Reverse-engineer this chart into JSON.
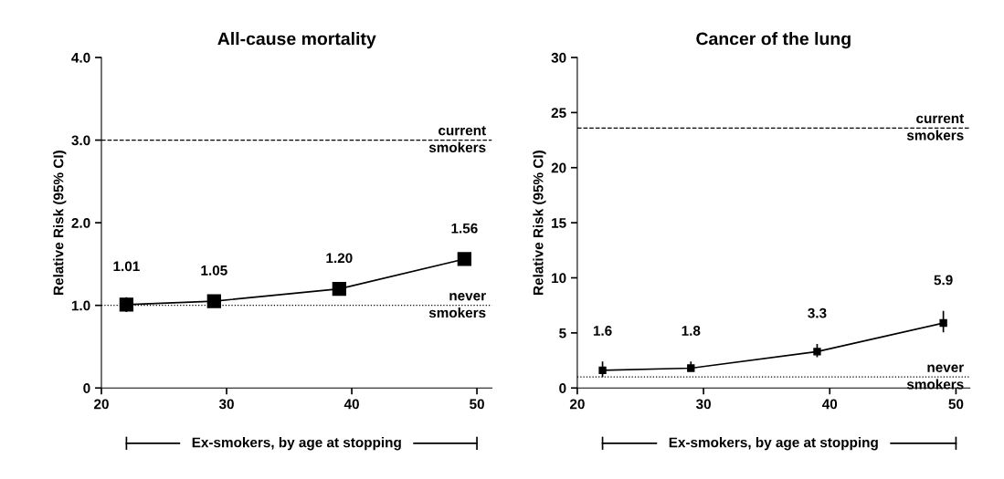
{
  "chart_data": [
    {
      "type": "line",
      "title": "All-cause mortality",
      "ylabel": "Relative Risk (95% CI)",
      "xlabel": "Ex-smokers, by age at stopping",
      "x": [
        22,
        29,
        39,
        49
      ],
      "series": [
        {
          "color": "#000000",
          "values": [
            1.01,
            1.05,
            1.2,
            1.56
          ],
          "value_labels": [
            "1.01",
            "1.05",
            "1.20",
            "1.56"
          ],
          "errors": [
            [
              0.92,
              1.1
            ],
            null,
            null,
            null
          ]
        }
      ],
      "marker": "square",
      "line_style": "solid",
      "xlim": [
        20,
        51.2
      ],
      "ylim": [
        0,
        4
      ],
      "xticks": [
        20,
        30,
        40,
        50
      ],
      "yticks": [
        0,
        {
          "value": 1,
          "label": "1.0"
        },
        {
          "value": 2,
          "label": "2.0"
        },
        {
          "value": 3,
          "label": "3.0"
        },
        {
          "value": 4,
          "label": "4.0"
        }
      ],
      "ref_lines": [
        {
          "axis": "y",
          "value": 3.0,
          "label": "current\nsmokers",
          "line_style": "dashed"
        },
        {
          "axis": "y",
          "value": 1.0,
          "label": "never\nsmokers",
          "line_style": "dotted"
        }
      ],
      "grid": false
    },
    {
      "type": "line",
      "title": "Cancer of the lung",
      "ylabel": "Relative Risk (95% CI)",
      "xlabel": "Ex-smokers, by age at stopping",
      "x": [
        22,
        29,
        39,
        49
      ],
      "series": [
        {
          "color": "#000000",
          "values": [
            1.6,
            1.8,
            3.3,
            5.9
          ],
          "errors": [
            [
              1.0,
              2.4
            ],
            [
              1.55,
              2.4
            ],
            [
              2.8,
              4.0
            ],
            [
              5.05,
              7.0
            ]
          ]
        }
      ],
      "data_labels": true,
      "marker": "square",
      "line_style": "solid",
      "xlim": [
        20,
        51.1
      ],
      "ylim": [
        0,
        30
      ],
      "xticks": [
        20,
        30,
        40,
        50
      ],
      "yticks": [
        0,
        5,
        10,
        15,
        20,
        25,
        30
      ],
      "ref_lines": [
        {
          "axis": "y",
          "value": 23.6,
          "label": "current\nsmokers",
          "line_style": "dashed"
        },
        {
          "axis": "y",
          "value": 1.0,
          "label": "never\nsmokers",
          "line_style": "dotted"
        }
      ],
      "grid": false
    }
  ]
}
